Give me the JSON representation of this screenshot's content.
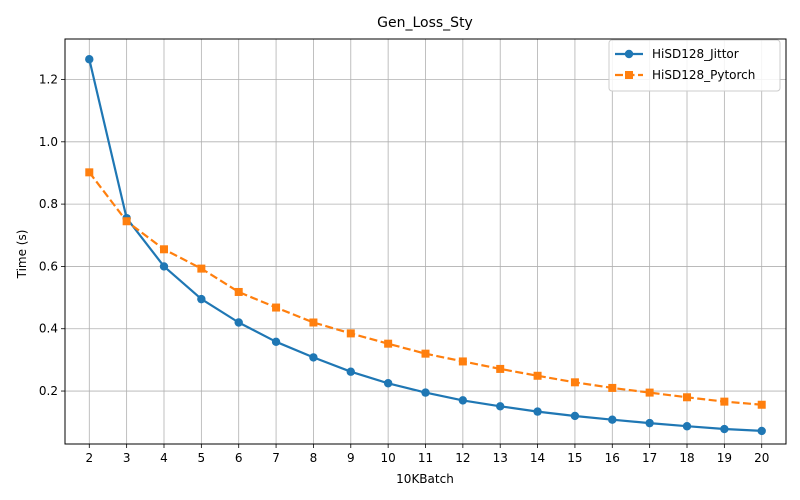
{
  "chart_data": {
    "type": "line",
    "title": "Gen_Loss_Sty",
    "xlabel": "10KBatch",
    "ylabel": "Time (s)",
    "x": [
      2,
      3,
      4,
      5,
      6,
      7,
      8,
      9,
      10,
      11,
      12,
      13,
      14,
      15,
      16,
      17,
      18,
      19,
      20
    ],
    "xlim": [
      1.35,
      20.65
    ],
    "ylim": [
      0.03,
      1.33
    ],
    "yticks": [
      0.2,
      0.4,
      0.6,
      0.8,
      1.0,
      1.2
    ],
    "ytick_labels": [
      "0.2",
      "0.4",
      "0.6",
      "0.8",
      "1.0",
      "1.2"
    ],
    "grid": true,
    "legend_position": "top-right",
    "series": [
      {
        "name": "HiSD128_Jittor",
        "color": "#1f77b4",
        "marker": "circle",
        "linestyle": "solid",
        "values": [
          1.265,
          0.755,
          0.6,
          0.495,
          0.42,
          0.358,
          0.308,
          0.262,
          0.225,
          0.195,
          0.17,
          0.151,
          0.134,
          0.12,
          0.108,
          0.097,
          0.087,
          0.078,
          0.072
        ]
      },
      {
        "name": "HiSD128_Pytorch",
        "color": "#ff7f0e",
        "marker": "square",
        "linestyle": "dashed",
        "values": [
          0.902,
          0.745,
          0.655,
          0.593,
          0.518,
          0.468,
          0.42,
          0.385,
          0.352,
          0.32,
          0.295,
          0.271,
          0.249,
          0.228,
          0.21,
          0.195,
          0.18,
          0.166,
          0.156
        ]
      }
    ]
  }
}
